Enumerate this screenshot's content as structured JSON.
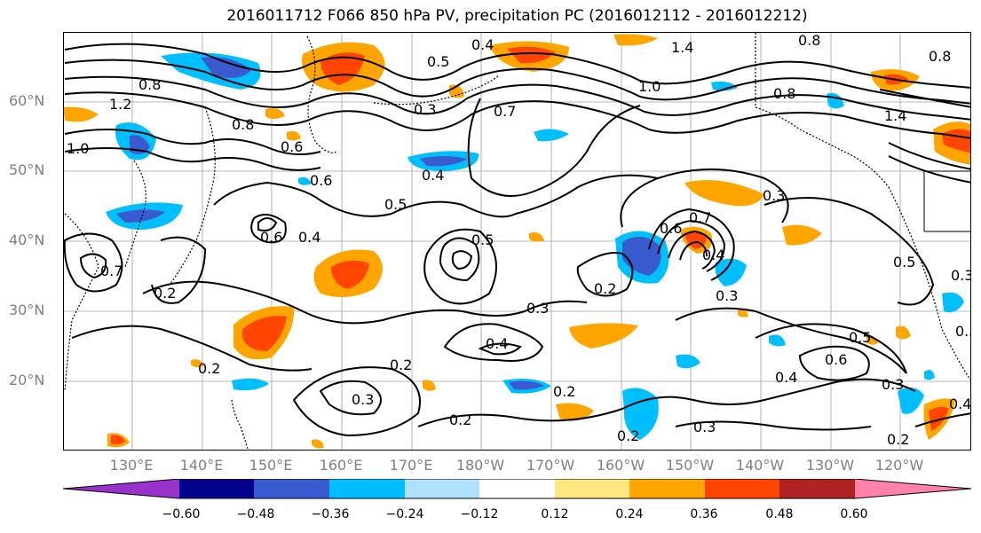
{
  "title": "2016011712 F066 850 hPa PV, precipitation PC (2016012112 - 2016012212)",
  "lat_labels": [
    "60°N",
    "50°N",
    "40°N",
    "30°N",
    "20°N"
  ],
  "lon_labels": [
    "130°E",
    "140°E",
    "150°E",
    "160°E",
    "170°E",
    "180°W",
    "170°W",
    "160°W",
    "150°W",
    "140°W",
    "130°W",
    "120°W"
  ],
  "colorbar": {
    "ticks": [
      "−0.60",
      "−0.48",
      "−0.36",
      "−0.24",
      "−0.12",
      "0.12",
      "0.24",
      "0.36",
      "0.48",
      "0.60"
    ],
    "colors": [
      "#9932cc",
      "#00008b",
      "#3a5bd0",
      "#00bfff",
      "#b0e2ff",
      "#ffffff",
      "#ffe680",
      "#ffa500",
      "#ff4500",
      "#b22222",
      "#ff82ab"
    ]
  },
  "contour_labels": [
    "0.4",
    "1.4",
    "0.8",
    "0.5",
    "0.3",
    "0.7",
    "1.0",
    "0.8",
    "1.4",
    "0.8",
    "1.2",
    "0.8",
    "1.0",
    "0.6",
    "0.6",
    "0.4",
    "0.5",
    "0.6",
    "0.4",
    "0.5",
    "0.3",
    "0.6",
    "0.7",
    "0.4",
    "0.3",
    "0.5",
    "0.2",
    "0.3",
    "0.3",
    "0.4",
    "0.2",
    "0.2",
    "0.3",
    "0.2",
    "0.2",
    "0.2",
    "0.3",
    "0.6",
    "0.5",
    "0.4",
    "0.3",
    "0.2",
    "0.4",
    "0.2",
    "0.7",
    "0.3",
    "0.8"
  ]
}
